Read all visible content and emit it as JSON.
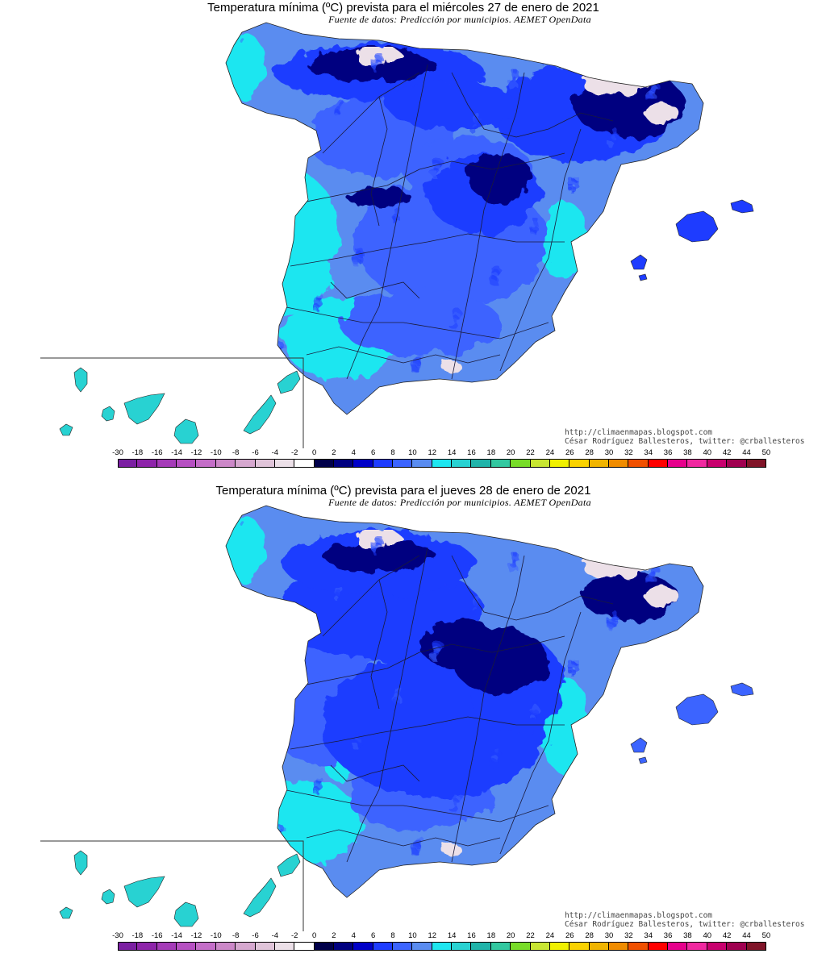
{
  "maps": [
    {
      "title": "Temperatura mínima (ºC) prevista para el miércoles 27 de enero de 2021",
      "source": "Fuente de datos: Predicción por municipios. AEMET OpenData",
      "cold_pattern": "strong-north",
      "credit_url": "http://climaenmapas.blogspot.com",
      "credit_author": "César Rodríguez Ballesteros, twitter: @crballesteros"
    },
    {
      "title": "Temperatura mínima (ºC) prevista para el jueves 28 de enero de 2021",
      "source": "Fuente de datos: Predicción por municipios. AEMET OpenData",
      "cold_pattern": "strong-center",
      "credit_url": "http://climaenmapas.blogspot.com",
      "credit_author": "César Rodríguez Ballesteros, twitter: @crballesteros"
    }
  ],
  "legend": {
    "ticks": [
      "-30",
      "-18",
      "-16",
      "-14",
      "-12",
      "-10",
      "-8",
      "-6",
      "-4",
      "-2",
      "0",
      "2",
      "4",
      "6",
      "8",
      "10",
      "12",
      "14",
      "16",
      "18",
      "20",
      "22",
      "24",
      "26",
      "28",
      "30",
      "32",
      "34",
      "36",
      "38",
      "40",
      "42",
      "44",
      "50"
    ],
    "colors": [
      "#7b1fa2",
      "#8e24aa",
      "#a53bb8",
      "#b650c2",
      "#c46ec8",
      "#cc88c8",
      "#d6a8cf",
      "#e0c4d9",
      "#ece0e8",
      "#ffffff",
      "#00004a",
      "#000080",
      "#0000c8",
      "#1e3cff",
      "#3c64ff",
      "#5a8cf0",
      "#1ee6f0",
      "#28d2d2",
      "#20b4aa",
      "#32c8a0",
      "#78dc28",
      "#c8e632",
      "#f0f000",
      "#fad200",
      "#f0b400",
      "#f08c00",
      "#f05000",
      "#ff0000",
      "#e6008c",
      "#f028a0",
      "#c8006e",
      "#a00050",
      "#801428"
    ]
  }
}
